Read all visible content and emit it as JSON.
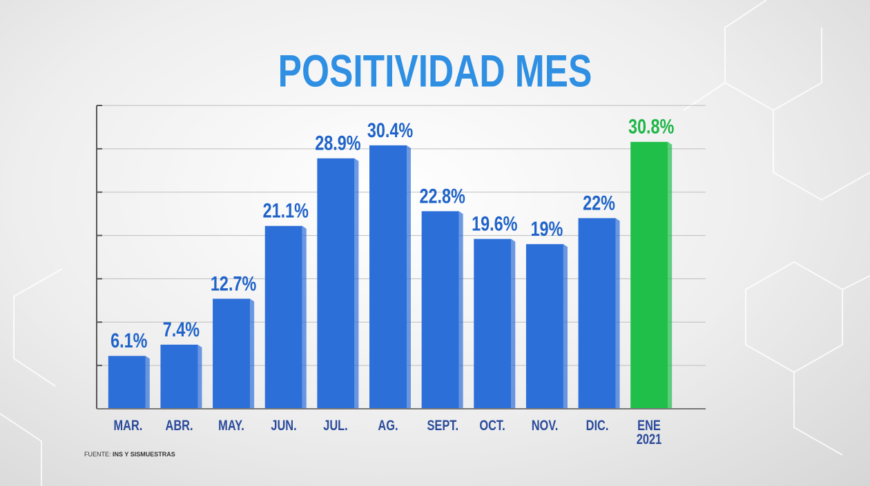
{
  "chart_data": {
    "type": "bar",
    "title": "POSITIVIDAD MES",
    "categories": [
      "MAR.",
      "ABR.",
      "MAY.",
      "JUN.",
      "JUL.",
      "AG.",
      "SEPT.",
      "OCT.",
      "NOV.",
      "DIC.",
      "ENE 2021"
    ],
    "values": [
      6.1,
      7.4,
      12.7,
      21.1,
      28.9,
      30.4,
      22.8,
      19.6,
      19,
      22,
      30.8
    ],
    "value_labels": [
      "6.1%",
      "7.4%",
      "12.7%",
      "21.1%",
      "28.9%",
      "30.4%",
      "22.8%",
      "19.6%",
      "19%",
      "22%",
      "30.8%"
    ],
    "colors": [
      "#2d6fd8",
      "#2d6fd8",
      "#2d6fd8",
      "#2d6fd8",
      "#2d6fd8",
      "#2d6fd8",
      "#2d6fd8",
      "#2d6fd8",
      "#2d6fd8",
      "#2d6fd8",
      "#1fbf4a"
    ],
    "label_colors": [
      "#1f63c9",
      "#1f63c9",
      "#1f63c9",
      "#1f63c9",
      "#1f63c9",
      "#1f63c9",
      "#1f63c9",
      "#1f63c9",
      "#1f63c9",
      "#1f63c9",
      "#1fb548"
    ],
    "ylim": [
      0,
      35
    ],
    "yticks": [
      0,
      5,
      10,
      15,
      20,
      25,
      30,
      35
    ],
    "grid": true,
    "source": {
      "label": "FUENTE:",
      "text": "INS Y SISMUESTRAS"
    }
  }
}
